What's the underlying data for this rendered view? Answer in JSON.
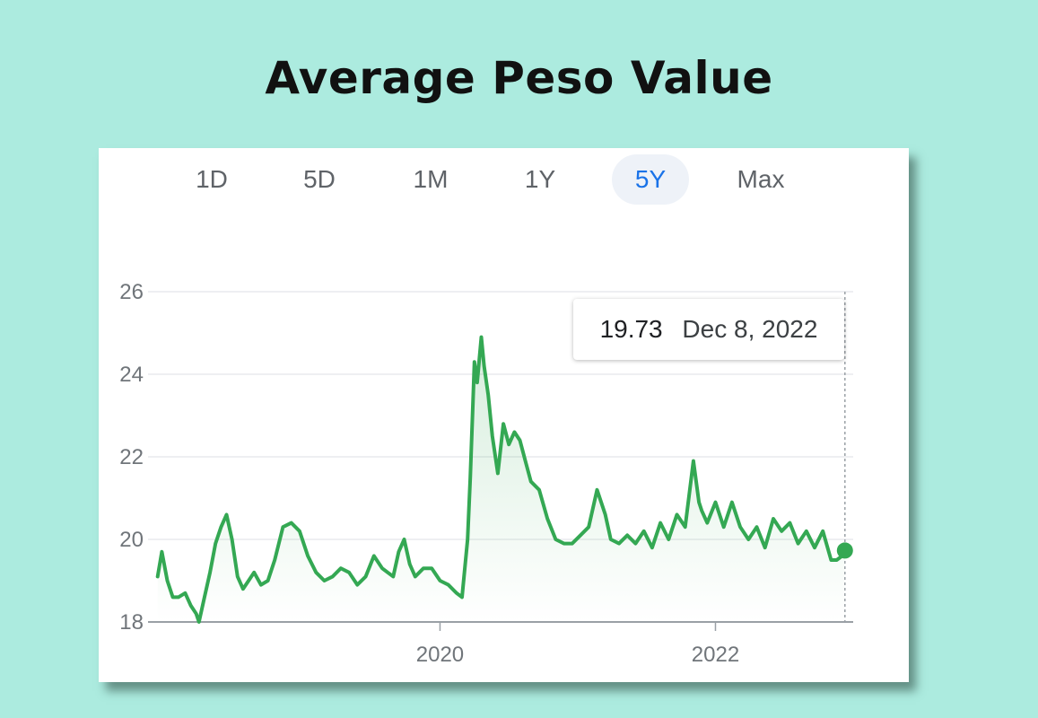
{
  "title": "Average Peso Value",
  "range_tabs": [
    {
      "label": "1D",
      "active": false
    },
    {
      "label": "5D",
      "active": false
    },
    {
      "label": "1M",
      "active": false
    },
    {
      "label": "1Y",
      "active": false
    },
    {
      "label": "5Y",
      "active": true
    },
    {
      "label": "Max",
      "active": false
    }
  ],
  "tooltip": {
    "value": "19.73",
    "date": "Dec 8, 2022"
  },
  "colors": {
    "line": "#34a853",
    "active_tab": "#1a73e8",
    "background": "#acebdf"
  },
  "chart_data": {
    "type": "area",
    "x_unit": "year",
    "x": [
      2017.95,
      2017.98,
      2018.02,
      2018.06,
      2018.1,
      2018.15,
      2018.19,
      2018.23,
      2018.25,
      2018.29,
      2018.33,
      2018.37,
      2018.41,
      2018.45,
      2018.49,
      2018.53,
      2018.57,
      2018.61,
      2018.65,
      2018.7,
      2018.75,
      2018.8,
      2018.86,
      2018.92,
      2018.98,
      2019.04,
      2019.1,
      2019.16,
      2019.22,
      2019.28,
      2019.34,
      2019.4,
      2019.46,
      2019.52,
      2019.58,
      2019.62,
      2019.66,
      2019.7,
      2019.74,
      2019.78,
      2019.82,
      2019.88,
      2019.94,
      2020.0,
      2020.06,
      2020.12,
      2020.16,
      2020.2,
      2020.22,
      2020.25,
      2020.27,
      2020.3,
      2020.32,
      2020.35,
      2020.38,
      2020.42,
      2020.46,
      2020.5,
      2020.54,
      2020.58,
      2020.62,
      2020.66,
      2020.72,
      2020.78,
      2020.84,
      2020.9,
      2020.96,
      2021.02,
      2021.08,
      2021.14,
      2021.2,
      2021.24,
      2021.3,
      2021.36,
      2021.42,
      2021.48,
      2021.54,
      2021.6,
      2021.66,
      2021.72,
      2021.78,
      2021.84,
      2021.88,
      2021.9,
      2021.94,
      2022.0,
      2022.06,
      2022.12,
      2022.18,
      2022.24,
      2022.3,
      2022.36,
      2022.42,
      2022.48,
      2022.54,
      2022.6,
      2022.66,
      2022.72,
      2022.78,
      2022.84,
      2022.88,
      2022.92,
      2022.94
    ],
    "series": [
      {
        "values": [
          19.1,
          19.7,
          19.0,
          18.6,
          18.6,
          18.7,
          18.4,
          18.2,
          18.0,
          18.6,
          19.2,
          19.9,
          20.3,
          20.6,
          20.0,
          19.1,
          18.8,
          19.0,
          19.2,
          18.9,
          19.0,
          19.5,
          20.3,
          20.4,
          20.2,
          19.6,
          19.2,
          19.0,
          19.1,
          19.3,
          19.2,
          18.9,
          19.1,
          19.6,
          19.3,
          19.2,
          19.1,
          19.7,
          20.0,
          19.4,
          19.1,
          19.3,
          19.3,
          19.0,
          18.9,
          18.7,
          18.6,
          20.0,
          21.5,
          24.3,
          23.8,
          24.9,
          24.2,
          23.5,
          22.5,
          21.6,
          22.8,
          22.3,
          22.6,
          22.4,
          21.9,
          21.4,
          21.2,
          20.5,
          20.0,
          19.9,
          19.9,
          20.1,
          20.3,
          21.2,
          20.6,
          20.0,
          19.9,
          20.1,
          19.9,
          20.2,
          19.8,
          20.4,
          20.0,
          20.6,
          20.3,
          21.9,
          20.9,
          20.7,
          20.4,
          20.9,
          20.3,
          20.9,
          20.3,
          20.0,
          20.3,
          19.8,
          20.5,
          20.2,
          20.4,
          19.9,
          20.2,
          19.8,
          20.2,
          19.5,
          19.5,
          19.6,
          19.73
        ]
      }
    ],
    "xticks": [
      {
        "value": 2020,
        "label": "2020"
      },
      {
        "value": 2022,
        "label": "2022"
      }
    ],
    "yticks": [
      18,
      20,
      22,
      24,
      26
    ],
    "ylim": [
      18,
      26
    ],
    "xlim": [
      2017.88,
      2023.0
    ],
    "grid": true,
    "highlight_point": {
      "x": 2022.94,
      "y": 19.73
    }
  }
}
